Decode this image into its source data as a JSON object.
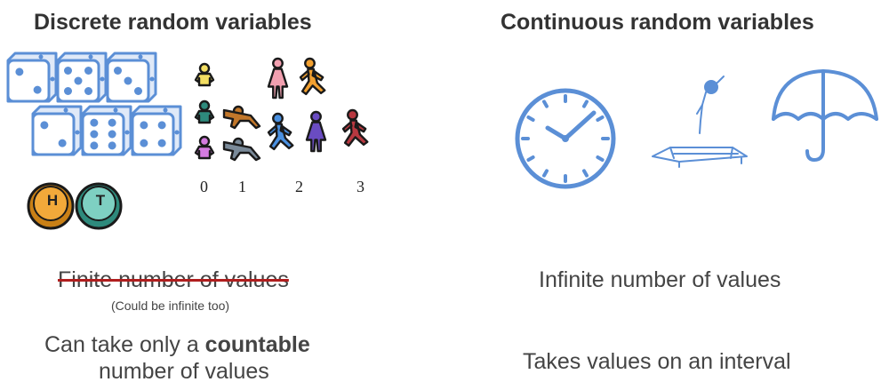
{
  "discrete": {
    "title": "Discrete random variables",
    "coins": [
      "H",
      "T"
    ],
    "counts": [
      "0",
      "1",
      "2",
      "3"
    ],
    "finite": "Finite number of values",
    "finite_note": "(Could be infinite too)",
    "countable_pre": "Can take only a ",
    "countable_bold": "countable",
    "countable_post": "number of values"
  },
  "continuous": {
    "title": "Continuous random variables",
    "infinite": "Infinite number of values",
    "interval": "Takes values on an interval"
  },
  "colors": {
    "icon_blue": "#5b8fd6",
    "strike_red": "#b01e1e"
  },
  "icons": [
    "dice-icon",
    "coin-icon",
    "baby-icon",
    "toddler-icon",
    "person-icon",
    "clock-icon",
    "diver-trampoline-icon",
    "umbrella-icon"
  ]
}
